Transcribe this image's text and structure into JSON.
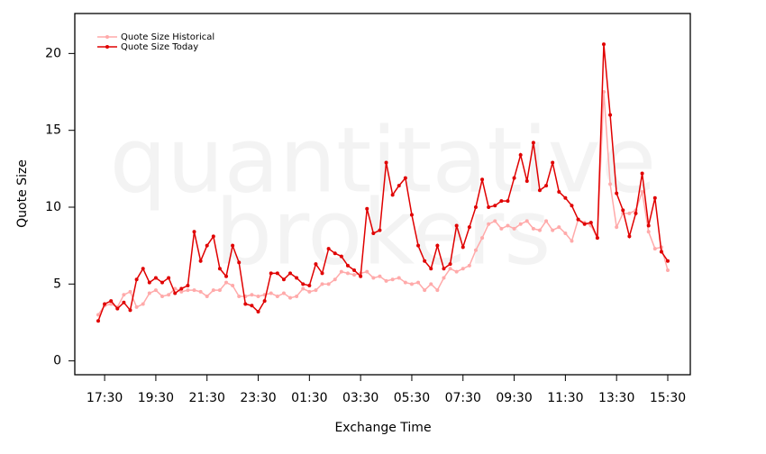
{
  "chart_data": {
    "type": "line",
    "watermark": [
      "quantitative",
      "brokers"
    ],
    "x_label": "Exchange Time",
    "y_label": "Quote Size",
    "categories": [
      "17:15",
      "17:30",
      "17:45",
      "18:00",
      "18:15",
      "18:30",
      "18:45",
      "19:00",
      "19:15",
      "19:30",
      "19:45",
      "20:00",
      "20:15",
      "20:30",
      "20:45",
      "21:00",
      "21:15",
      "21:30",
      "21:45",
      "22:00",
      "22:15",
      "22:30",
      "22:45",
      "23:00",
      "23:15",
      "23:30",
      "23:45",
      "00:00",
      "00:15",
      "00:30",
      "00:45",
      "01:00",
      "01:15",
      "01:30",
      "01:45",
      "02:00",
      "02:15",
      "02:30",
      "02:45",
      "03:00",
      "03:15",
      "03:30",
      "03:45",
      "04:00",
      "04:15",
      "04:30",
      "04:45",
      "05:00",
      "05:15",
      "05:30",
      "05:45",
      "06:00",
      "06:15",
      "06:30",
      "06:45",
      "07:00",
      "07:15",
      "07:30",
      "07:45",
      "08:00",
      "08:15",
      "08:30",
      "08:45",
      "09:00",
      "09:15",
      "09:30",
      "09:45",
      "10:00",
      "10:15",
      "10:30",
      "10:45",
      "11:00",
      "11:15",
      "11:30",
      "11:45",
      "12:00",
      "12:15",
      "12:30",
      "12:45",
      "13:00",
      "13:15",
      "13:30",
      "13:45",
      "14:00",
      "14:15",
      "14:30",
      "14:45",
      "15:00",
      "15:15",
      "15:30"
    ],
    "xticks": [
      "17:30",
      "19:30",
      "21:30",
      "23:30",
      "01:30",
      "03:30",
      "05:30",
      "07:30",
      "09:30",
      "11:30",
      "13:30",
      "15:30"
    ],
    "series": [
      {
        "name": "Quote Size Historical",
        "color": "#ffaaaa",
        "values": [
          3.0,
          3.6,
          3.7,
          3.5,
          4.3,
          4.5,
          3.5,
          3.7,
          4.4,
          4.6,
          4.2,
          4.3,
          4.7,
          4.5,
          4.6,
          4.6,
          4.5,
          4.2,
          4.6,
          4.6,
          5.1,
          4.9,
          4.2,
          4.2,
          4.3,
          4.2,
          4.3,
          4.4,
          4.2,
          4.4,
          4.1,
          4.2,
          4.7,
          4.5,
          4.6,
          5.0,
          5.0,
          5.3,
          5.8,
          5.7,
          5.6,
          5.7,
          5.8,
          5.4,
          5.5,
          5.2,
          5.3,
          5.4,
          5.1,
          5.0,
          5.1,
          4.6,
          5.0,
          4.6,
          5.4,
          6.0,
          5.8,
          6.0,
          6.2,
          7.2,
          8.0,
          8.9,
          9.1,
          8.6,
          8.8,
          8.6,
          8.9,
          9.1,
          8.6,
          8.5,
          9.1,
          8.5,
          8.7,
          8.3,
          7.8,
          9.2,
          9.0,
          8.8,
          8.0,
          17.5,
          11.5,
          8.7,
          9.6,
          9.6,
          9.8,
          11.0,
          8.4,
          7.3,
          7.4,
          5.9
        ]
      },
      {
        "name": "Quote Size Today",
        "color": "#e00000",
        "values": [
          2.6,
          3.7,
          3.9,
          3.4,
          3.8,
          3.3,
          5.3,
          6.0,
          5.1,
          5.4,
          5.1,
          5.4,
          4.4,
          4.7,
          4.9,
          8.4,
          6.5,
          7.5,
          8.1,
          6.0,
          5.5,
          7.5,
          6.4,
          3.7,
          3.6,
          3.2,
          3.9,
          5.7,
          5.7,
          5.3,
          5.7,
          5.4,
          5.0,
          4.9,
          6.3,
          5.7,
          7.3,
          7.0,
          6.8,
          6.2,
          5.9,
          5.5,
          9.9,
          8.3,
          8.5,
          12.9,
          10.8,
          11.4,
          11.9,
          9.5,
          7.5,
          6.5,
          6.0,
          7.5,
          6.0,
          6.3,
          8.8,
          7.4,
          8.7,
          10.0,
          11.8,
          10.0,
          10.1,
          10.4,
          10.4,
          11.9,
          13.4,
          11.7,
          14.2,
          11.1,
          11.4,
          12.9,
          11.0,
          10.6,
          10.1,
          9.2,
          8.9,
          9.0,
          8.0,
          20.6,
          16.0,
          10.9,
          9.8,
          8.1,
          9.6,
          12.2,
          8.8,
          10.6,
          7.1,
          6.5
        ]
      }
    ],
    "ylim": [
      -0.9,
      22.6
    ],
    "yticks": [
      0,
      5,
      10,
      15,
      20
    ],
    "legend": "top-left",
    "markers": true
  }
}
